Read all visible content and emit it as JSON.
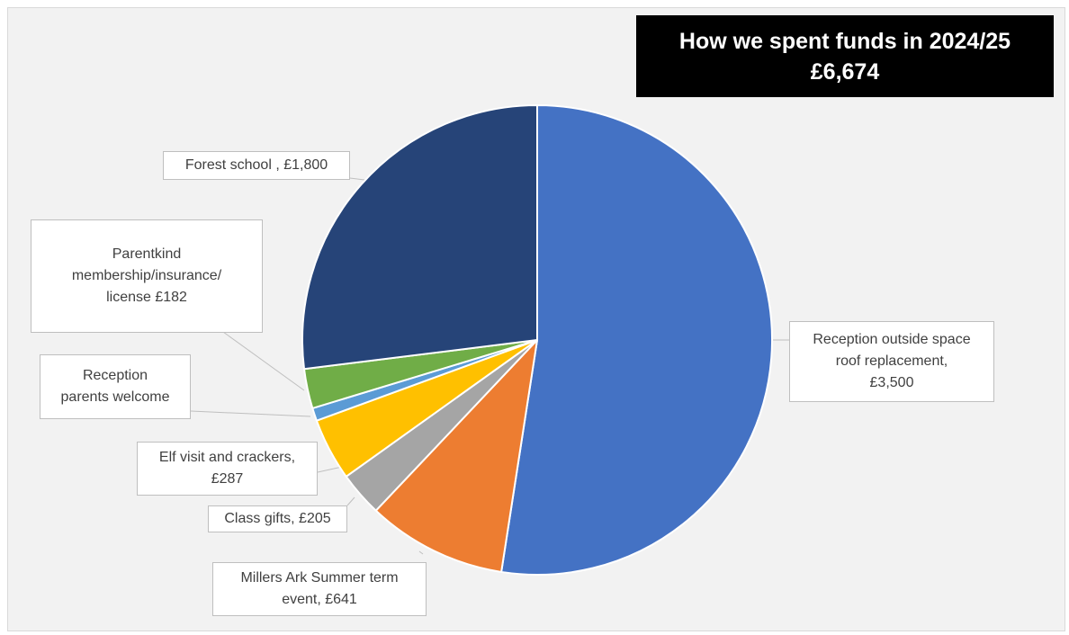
{
  "chart_data": {
    "type": "pie",
    "title_line1": "How we spent funds in 2024/25",
    "title_line2": "£6,674",
    "slices": [
      {
        "label": "Reception outside space roof replacement, £3,500",
        "value": 3500,
        "color": "#4472c4"
      },
      {
        "label": "Millers Ark Summer term event, £641",
        "value": 641,
        "color": "#ed7d31"
      },
      {
        "label": "Class gifts, £205",
        "value": 205,
        "color": "#a5a5a5"
      },
      {
        "label": "Elf visit and crackers, £287",
        "value": 287,
        "color": "#ffc000"
      },
      {
        "label": "Reception parents welcome",
        "value": 59,
        "color": "#5b9bd5"
      },
      {
        "label": "Parentkind membership/insurance/ license £182",
        "value": 182,
        "color": "#70ad47"
      },
      {
        "label": "Forest school , £1,800",
        "value": 1800,
        "color": "#264478"
      }
    ],
    "legend": "none"
  },
  "callouts": {
    "roof_line1": "Reception outside space",
    "roof_line2": "roof replacement,",
    "roof_line3": "£3,500",
    "millers_line1": "Millers Ark Summer term",
    "millers_line2": "event, £641",
    "gifts": "Class gifts, £205",
    "elf_line1": "Elf visit and crackers,",
    "elf_line2": "£287",
    "welcome_line1": "Reception",
    "welcome_line2": "parents welcome",
    "parentkind_line1": "Parentkind",
    "parentkind_line2": "membership/insurance/",
    "parentkind_line3": "license £182",
    "forest": "Forest school , £1,800"
  }
}
